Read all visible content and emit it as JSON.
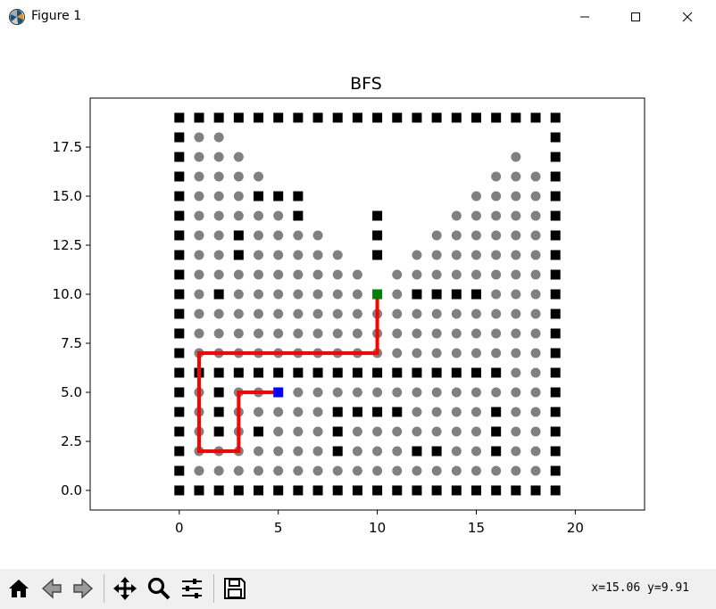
{
  "window": {
    "title": "Figure 1"
  },
  "toolbar": {
    "buttons": [
      {
        "name": "home-icon",
        "tooltip": "Reset original view"
      },
      {
        "name": "back-icon",
        "tooltip": "Back to previous view"
      },
      {
        "name": "forward-icon",
        "tooltip": "Forward to next view"
      },
      {
        "name": "pan-icon",
        "tooltip": "Pan axes"
      },
      {
        "name": "zoom-icon",
        "tooltip": "Zoom to rectangle"
      },
      {
        "name": "configure-icon",
        "tooltip": "Configure subplots"
      },
      {
        "name": "save-icon",
        "tooltip": "Save the figure"
      }
    ],
    "coords": "x=15.06 y=9.91"
  },
  "chart_data": {
    "type": "scatter",
    "title": "BFS",
    "xlabel": "",
    "ylabel": "",
    "xlim": [
      -4.5,
      23.5
    ],
    "ylim": [
      -1.0,
      20.0
    ],
    "xticks": [
      0,
      5,
      10,
      15,
      20
    ],
    "xtick_labels": [
      "0",
      "5",
      "10",
      "15",
      "20"
    ],
    "yticks": [
      0.0,
      2.5,
      5.0,
      7.5,
      10.0,
      12.5,
      15.0,
      17.5
    ],
    "ytick_labels": [
      "0.0",
      "2.5",
      "5.0",
      "7.5",
      "10.0",
      "12.5",
      "15.0",
      "17.5"
    ],
    "grid": false,
    "obstacle_color": "#000000",
    "visited_color": "#808080",
    "path_color": "#ff0000",
    "start_color": "#0000ff",
    "goal_color": "#008000",
    "obstacles": [
      [
        0,
        0
      ],
      [
        1,
        0
      ],
      [
        2,
        0
      ],
      [
        3,
        0
      ],
      [
        4,
        0
      ],
      [
        5,
        0
      ],
      [
        6,
        0
      ],
      [
        7,
        0
      ],
      [
        8,
        0
      ],
      [
        9,
        0
      ],
      [
        10,
        0
      ],
      [
        11,
        0
      ],
      [
        12,
        0
      ],
      [
        13,
        0
      ],
      [
        14,
        0
      ],
      [
        15,
        0
      ],
      [
        16,
        0
      ],
      [
        17,
        0
      ],
      [
        18,
        0
      ],
      [
        19,
        0
      ],
      [
        0,
        19
      ],
      [
        1,
        19
      ],
      [
        2,
        19
      ],
      [
        3,
        19
      ],
      [
        4,
        19
      ],
      [
        5,
        19
      ],
      [
        6,
        19
      ],
      [
        7,
        19
      ],
      [
        8,
        19
      ],
      [
        9,
        19
      ],
      [
        10,
        19
      ],
      [
        11,
        19
      ],
      [
        12,
        19
      ],
      [
        13,
        19
      ],
      [
        14,
        19
      ],
      [
        15,
        19
      ],
      [
        16,
        19
      ],
      [
        17,
        19
      ],
      [
        18,
        19
      ],
      [
        19,
        19
      ],
      [
        0,
        1
      ],
      [
        0,
        2
      ],
      [
        0,
        3
      ],
      [
        0,
        4
      ],
      [
        0,
        5
      ],
      [
        0,
        6
      ],
      [
        0,
        7
      ],
      [
        0,
        8
      ],
      [
        0,
        9
      ],
      [
        0,
        10
      ],
      [
        0,
        11
      ],
      [
        0,
        12
      ],
      [
        0,
        13
      ],
      [
        0,
        14
      ],
      [
        0,
        15
      ],
      [
        0,
        16
      ],
      [
        0,
        17
      ],
      [
        0,
        18
      ],
      [
        19,
        1
      ],
      [
        19,
        2
      ],
      [
        19,
        3
      ],
      [
        19,
        4
      ],
      [
        19,
        5
      ],
      [
        19,
        6
      ],
      [
        19,
        7
      ],
      [
        19,
        8
      ],
      [
        19,
        9
      ],
      [
        19,
        10
      ],
      [
        19,
        11
      ],
      [
        19,
        12
      ],
      [
        19,
        13
      ],
      [
        19,
        14
      ],
      [
        19,
        15
      ],
      [
        19,
        16
      ],
      [
        19,
        17
      ],
      [
        19,
        18
      ],
      [
        1,
        6
      ],
      [
        2,
        6
      ],
      [
        3,
        6
      ],
      [
        4,
        6
      ],
      [
        5,
        6
      ],
      [
        6,
        6
      ],
      [
        7,
        6
      ],
      [
        8,
        6
      ],
      [
        9,
        6
      ],
      [
        10,
        6
      ],
      [
        11,
        6
      ],
      [
        12,
        6
      ],
      [
        13,
        6
      ],
      [
        14,
        6
      ],
      [
        15,
        6
      ],
      [
        16,
        6
      ],
      [
        4,
        15
      ],
      [
        5,
        15
      ],
      [
        6,
        15
      ],
      [
        6,
        14
      ],
      [
        3,
        13
      ],
      [
        3,
        12
      ],
      [
        10,
        14
      ],
      [
        10,
        13
      ],
      [
        10,
        12
      ],
      [
        2,
        10
      ],
      [
        12,
        10
      ],
      [
        13,
        10
      ],
      [
        14,
        10
      ],
      [
        15,
        10
      ],
      [
        2,
        5
      ],
      [
        2,
        4
      ],
      [
        2,
        3
      ],
      [
        4,
        3
      ],
      [
        8,
        4
      ],
      [
        9,
        4
      ],
      [
        10,
        4
      ],
      [
        11,
        4
      ],
      [
        8,
        3
      ],
      [
        8,
        2
      ],
      [
        16,
        4
      ],
      [
        16,
        3
      ],
      [
        16,
        2
      ],
      [
        12,
        2
      ],
      [
        13,
        2
      ]
    ],
    "visited": [
      [
        1,
        18
      ],
      [
        2,
        18
      ],
      [
        1,
        17
      ],
      [
        2,
        17
      ],
      [
        3,
        17
      ],
      [
        17,
        17
      ],
      [
        1,
        16
      ],
      [
        2,
        16
      ],
      [
        3,
        16
      ],
      [
        4,
        16
      ],
      [
        16,
        16
      ],
      [
        17,
        16
      ],
      [
        18,
        16
      ],
      [
        1,
        15
      ],
      [
        2,
        15
      ],
      [
        3,
        15
      ],
      [
        15,
        15
      ],
      [
        16,
        15
      ],
      [
        17,
        15
      ],
      [
        18,
        15
      ],
      [
        1,
        14
      ],
      [
        2,
        14
      ],
      [
        3,
        14
      ],
      [
        4,
        14
      ],
      [
        5,
        14
      ],
      [
        14,
        14
      ],
      [
        15,
        14
      ],
      [
        16,
        14
      ],
      [
        17,
        14
      ],
      [
        18,
        14
      ],
      [
        1,
        13
      ],
      [
        2,
        13
      ],
      [
        4,
        13
      ],
      [
        5,
        13
      ],
      [
        6,
        13
      ],
      [
        7,
        13
      ],
      [
        13,
        13
      ],
      [
        14,
        13
      ],
      [
        15,
        13
      ],
      [
        16,
        13
      ],
      [
        17,
        13
      ],
      [
        18,
        13
      ],
      [
        1,
        12
      ],
      [
        2,
        12
      ],
      [
        4,
        12
      ],
      [
        5,
        12
      ],
      [
        6,
        12
      ],
      [
        7,
        12
      ],
      [
        8,
        12
      ],
      [
        12,
        12
      ],
      [
        13,
        12
      ],
      [
        14,
        12
      ],
      [
        15,
        12
      ],
      [
        16,
        12
      ],
      [
        17,
        12
      ],
      [
        18,
        12
      ],
      [
        1,
        11
      ],
      [
        2,
        11
      ],
      [
        3,
        11
      ],
      [
        4,
        11
      ],
      [
        5,
        11
      ],
      [
        6,
        11
      ],
      [
        7,
        11
      ],
      [
        8,
        11
      ],
      [
        9,
        11
      ],
      [
        11,
        11
      ],
      [
        12,
        11
      ],
      [
        13,
        11
      ],
      [
        14,
        11
      ],
      [
        15,
        11
      ],
      [
        16,
        11
      ],
      [
        17,
        11
      ],
      [
        18,
        11
      ],
      [
        1,
        10
      ],
      [
        3,
        10
      ],
      [
        4,
        10
      ],
      [
        5,
        10
      ],
      [
        6,
        10
      ],
      [
        7,
        10
      ],
      [
        8,
        10
      ],
      [
        9,
        10
      ],
      [
        11,
        10
      ],
      [
        16,
        10
      ],
      [
        17,
        10
      ],
      [
        18,
        10
      ],
      [
        1,
        9
      ],
      [
        2,
        9
      ],
      [
        3,
        9
      ],
      [
        4,
        9
      ],
      [
        5,
        9
      ],
      [
        6,
        9
      ],
      [
        7,
        9
      ],
      [
        8,
        9
      ],
      [
        9,
        9
      ],
      [
        10,
        9
      ],
      [
        11,
        9
      ],
      [
        12,
        9
      ],
      [
        13,
        9
      ],
      [
        14,
        9
      ],
      [
        15,
        9
      ],
      [
        16,
        9
      ],
      [
        17,
        9
      ],
      [
        18,
        9
      ],
      [
        1,
        8
      ],
      [
        2,
        8
      ],
      [
        3,
        8
      ],
      [
        4,
        8
      ],
      [
        5,
        8
      ],
      [
        6,
        8
      ],
      [
        7,
        8
      ],
      [
        8,
        8
      ],
      [
        9,
        8
      ],
      [
        10,
        8
      ],
      [
        11,
        8
      ],
      [
        12,
        8
      ],
      [
        13,
        8
      ],
      [
        14,
        8
      ],
      [
        15,
        8
      ],
      [
        16,
        8
      ],
      [
        17,
        8
      ],
      [
        18,
        8
      ],
      [
        1,
        7
      ],
      [
        2,
        7
      ],
      [
        3,
        7
      ],
      [
        4,
        7
      ],
      [
        5,
        7
      ],
      [
        6,
        7
      ],
      [
        7,
        7
      ],
      [
        8,
        7
      ],
      [
        9,
        7
      ],
      [
        10,
        7
      ],
      [
        11,
        7
      ],
      [
        12,
        7
      ],
      [
        13,
        7
      ],
      [
        14,
        7
      ],
      [
        15,
        7
      ],
      [
        16,
        7
      ],
      [
        17,
        7
      ],
      [
        18,
        7
      ],
      [
        17,
        6
      ],
      [
        18,
        6
      ],
      [
        1,
        5
      ],
      [
        3,
        5
      ],
      [
        4,
        5
      ],
      [
        6,
        5
      ],
      [
        7,
        5
      ],
      [
        8,
        5
      ],
      [
        9,
        5
      ],
      [
        10,
        5
      ],
      [
        11,
        5
      ],
      [
        12,
        5
      ],
      [
        13,
        5
      ],
      [
        14,
        5
      ],
      [
        15,
        5
      ],
      [
        16,
        5
      ],
      [
        17,
        5
      ],
      [
        18,
        5
      ],
      [
        1,
        4
      ],
      [
        3,
        4
      ],
      [
        4,
        4
      ],
      [
        5,
        4
      ],
      [
        6,
        4
      ],
      [
        7,
        4
      ],
      [
        12,
        4
      ],
      [
        13,
        4
      ],
      [
        14,
        4
      ],
      [
        15,
        4
      ],
      [
        17,
        4
      ],
      [
        18,
        4
      ],
      [
        1,
        3
      ],
      [
        3,
        3
      ],
      [
        5,
        3
      ],
      [
        6,
        3
      ],
      [
        7,
        3
      ],
      [
        9,
        3
      ],
      [
        10,
        3
      ],
      [
        11,
        3
      ],
      [
        12,
        3
      ],
      [
        13,
        3
      ],
      [
        14,
        3
      ],
      [
        15,
        3
      ],
      [
        17,
        3
      ],
      [
        18,
        3
      ],
      [
        1,
        2
      ],
      [
        2,
        2
      ],
      [
        3,
        2
      ],
      [
        4,
        2
      ],
      [
        5,
        2
      ],
      [
        6,
        2
      ],
      [
        7,
        2
      ],
      [
        9,
        2
      ],
      [
        10,
        2
      ],
      [
        11,
        2
      ],
      [
        14,
        2
      ],
      [
        15,
        2
      ],
      [
        17,
        2
      ],
      [
        18,
        2
      ],
      [
        1,
        1
      ],
      [
        2,
        1
      ],
      [
        3,
        1
      ],
      [
        4,
        1
      ],
      [
        5,
        1
      ],
      [
        6,
        1
      ],
      [
        7,
        1
      ],
      [
        8,
        1
      ],
      [
        9,
        1
      ],
      [
        10,
        1
      ],
      [
        11,
        1
      ],
      [
        12,
        1
      ],
      [
        13,
        1
      ],
      [
        14,
        1
      ],
      [
        15,
        1
      ],
      [
        16,
        1
      ],
      [
        17,
        1
      ],
      [
        18,
        1
      ]
    ],
    "path": [
      [
        10,
        10
      ],
      [
        10,
        7
      ],
      [
        1,
        7
      ],
      [
        1,
        2
      ],
      [
        3,
        2
      ],
      [
        3,
        5
      ],
      [
        5,
        5
      ]
    ],
    "start": [
      5,
      5
    ],
    "goal": [
      10,
      10
    ]
  }
}
